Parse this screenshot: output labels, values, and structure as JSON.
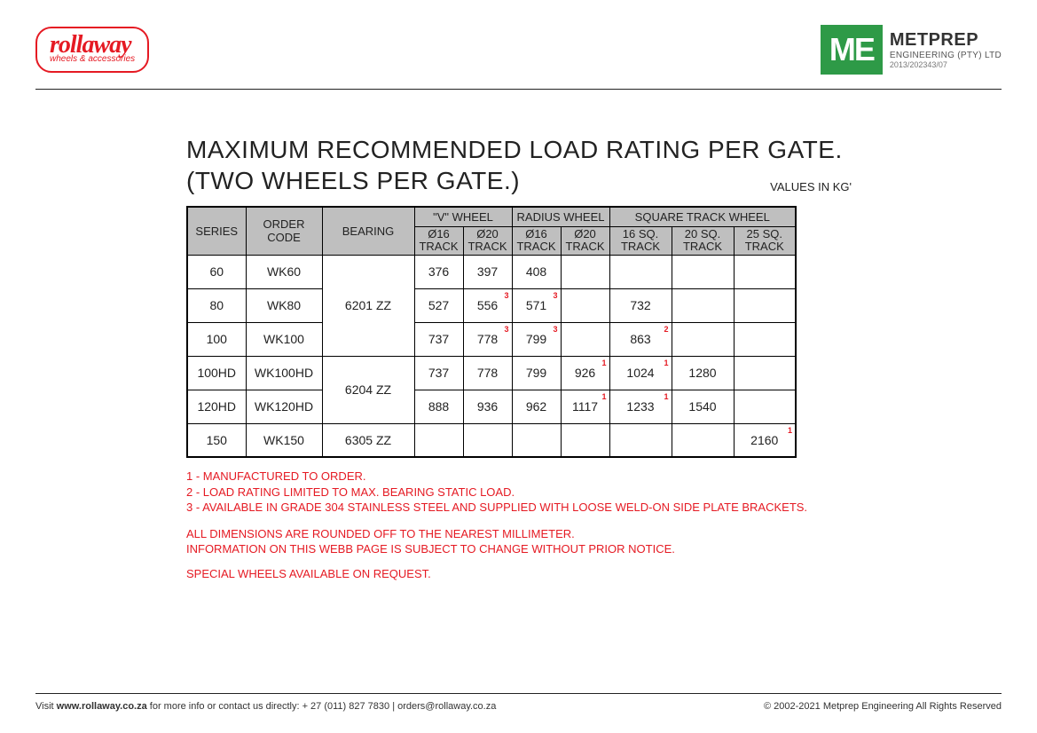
{
  "header": {
    "rollaway": {
      "main": "rollaway",
      "sub": "wheels & accessories"
    },
    "metprep": {
      "badge": "ME",
      "name": "METPREP",
      "line2": "ENGINEERING (PTY) LTD",
      "line3": "2013/202343/07"
    }
  },
  "title_line1": "MAXIMUM RECOMMENDED LOAD RATING PER GATE.",
  "title_line2": "(TWO WHEELS PER GATE.)",
  "units_label": "VALUES IN KG'",
  "table": {
    "type": "table",
    "colors": {
      "header_bg": "#bfbfbf",
      "border": "#000000",
      "note_sup": "#e51a23",
      "text": "#222222"
    },
    "fontsize": {
      "header": 13,
      "subheader": 12,
      "body": 14
    },
    "top_headers": {
      "series": "SERIES",
      "order": "ORDER CODE",
      "bearing": "BEARING",
      "v": "\"V\" WHEEL",
      "r": "RADIUS WHEEL",
      "s": "SQUARE TRACK WHEEL"
    },
    "sub_headers": {
      "v1": "Ø16 TRACK",
      "v2": "Ø20 TRACK",
      "r1": "Ø16 TRACK",
      "r2": "Ø20 TRACK",
      "s1": "16 SQ. TRACK",
      "s2": "20 SQ. TRACK",
      "s3": "25 SQ. TRACK"
    },
    "bearings": {
      "b1": "6201 ZZ",
      "b2": "6204 ZZ",
      "b3": "6305 ZZ"
    },
    "rows": [
      {
        "series": "60",
        "order": "WK60",
        "v1": "376",
        "v2": "397",
        "r1": "408",
        "r2": "",
        "s1": "",
        "s2": "",
        "s3": ""
      },
      {
        "series": "80",
        "order": "WK80",
        "v1": "527",
        "v2": "556",
        "v2n": "3",
        "r1": "571",
        "r1n": "3",
        "r2": "",
        "s1": "732",
        "s2": "",
        "s3": ""
      },
      {
        "series": "100",
        "order": "WK100",
        "v1": "737",
        "v2": "778",
        "v2n": "3",
        "r1": "799",
        "r1n": "3",
        "r2": "",
        "s1": "863",
        "s1n": "2",
        "s2": "",
        "s3": ""
      },
      {
        "series": "100HD",
        "order": "WK100HD",
        "v1": "737",
        "v2": "778",
        "r1": "799",
        "r2": "926",
        "r2n": "1",
        "s1": "1024",
        "s1n": "1",
        "s2": "1280",
        "s3": ""
      },
      {
        "series": "120HD",
        "order": "WK120HD",
        "v1": "888",
        "v2": "936",
        "r1": "962",
        "r2": "1117",
        "r2n": "1",
        "s1": "1233",
        "s1n": "1",
        "s2": "1540",
        "s3": ""
      },
      {
        "series": "150",
        "order": "WK150",
        "v1": "",
        "v2": "",
        "r1": "",
        "r2": "",
        "s1": "",
        "s2": "",
        "s3": "2160",
        "s3n": "1"
      }
    ]
  },
  "notes": {
    "n1": "1 - MANUFACTURED TO ORDER.",
    "n2": "2 - LOAD RATING LIMITED TO MAX. BEARING STATIC LOAD.",
    "n3": "3 - AVAILABLE IN GRADE 304 STAINLESS STEEL AND SUPPLIED WITH LOOSE WELD-ON SIDE PLATE BRACKETS.",
    "d1": "ALL DIMENSIONS ARE ROUNDED OFF TO THE NEAREST MILLIMETER.",
    "d2": "INFORMATION ON THIS WEBB PAGE IS SUBJECT TO CHANGE WITHOUT PRIOR NOTICE.",
    "d3": "SPECIAL WHEELS AVAILABLE ON REQUEST."
  },
  "footer": {
    "left_pre": "Visit ",
    "left_bold": "www.rollaway.co.za",
    "left_post": " for more info or contact us directly: + 27 (011) 827 7830  |  orders@rollaway.co.za",
    "right": "© 2002-2021 Metprep Engineering All Rights Reserved"
  }
}
